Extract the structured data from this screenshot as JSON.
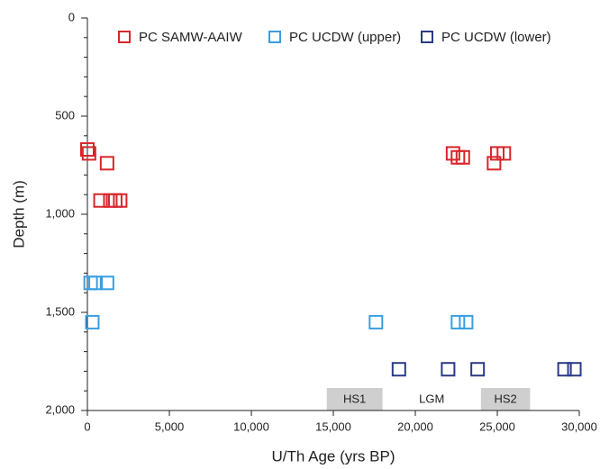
{
  "chart_data": {
    "type": "scatter",
    "x_label": "U/Th Age (yrs BP)",
    "y_label": "Depth (m)",
    "xlim": [
      0,
      30000
    ],
    "xticks": [
      0,
      {
        "value": 5000,
        "label": "5,000"
      },
      {
        "value": 10000,
        "label": "10,000"
      },
      {
        "value": 15000,
        "label": "15,000"
      },
      {
        "value": 20000,
        "label": "20,000"
      },
      {
        "value": 25000,
        "label": "25,000"
      },
      {
        "value": 30000,
        "label": "30,000"
      }
    ],
    "ylim": [
      0,
      2000
    ],
    "y_inverted": true,
    "yticks": [
      0,
      500,
      {
        "value": 1000,
        "label": "1,000"
      },
      {
        "value": 1500,
        "label": "1,500"
      },
      {
        "value": 2000,
        "label": "2,000"
      }
    ],
    "yminorticks": [
      100,
      200,
      300,
      400,
      600,
      700,
      800,
      900,
      1100,
      1200,
      1300,
      1400,
      1600,
      1700,
      1800,
      1900
    ],
    "grid": false,
    "legend": "top",
    "series": [
      {
        "name": "PC SAMW-AAIW",
        "color": "#d7262b",
        "x": [
          0,
          100,
          1200,
          800,
          1400,
          1700,
          2000,
          22300,
          22600,
          22900,
          24800,
          25000,
          25400
        ],
        "values": [
          670,
          690,
          740,
          930,
          930,
          930,
          930,
          690,
          710,
          710,
          740,
          690,
          690
        ]
      },
      {
        "name": "PC UCDW (upper)",
        "color": "#3b9ee0",
        "x": [
          200,
          500,
          1200,
          300,
          17600,
          22600,
          23100
        ],
        "values": [
          1350,
          1350,
          1350,
          1550,
          1550,
          1550,
          1550
        ]
      },
      {
        "name": "PC UCDW (lower)",
        "color": "#2a3a86",
        "x": [
          19000,
          22000,
          23800,
          29100,
          29700
        ],
        "values": [
          1790,
          1790,
          1790,
          1790,
          1790
        ]
      }
    ],
    "bands": [
      {
        "label": "HS1",
        "x": [
          14600,
          18000
        ]
      },
      {
        "label": "HS2",
        "x": [
          24000,
          27000
        ]
      }
    ],
    "annotations": [
      {
        "text": "LGM",
        "x": 21000
      }
    ]
  }
}
